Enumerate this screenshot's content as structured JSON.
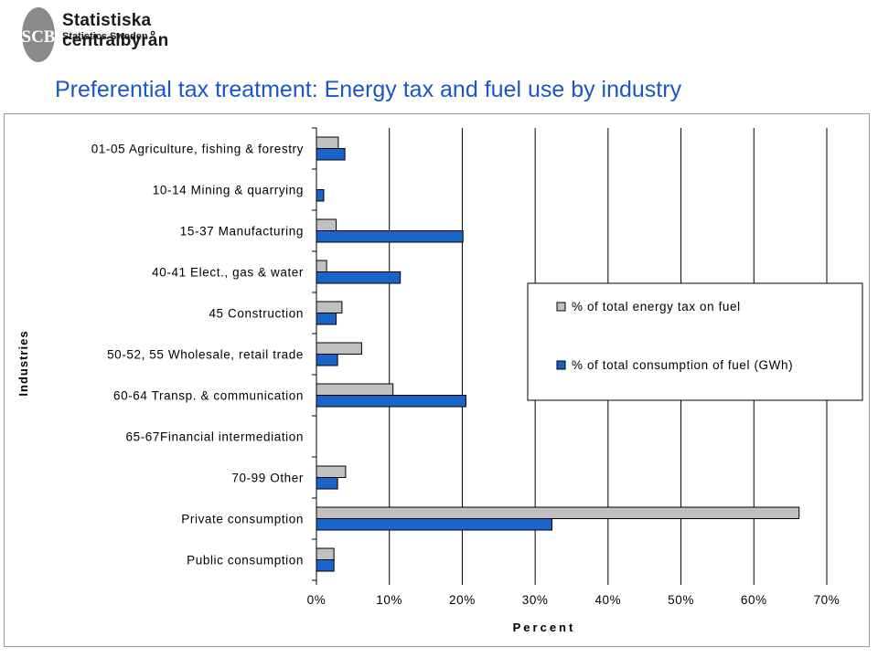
{
  "header": {
    "logo_name": "Statistiska centralbyrån",
    "logo_sub": "Statistics Sweden",
    "logo_mark": "SCB",
    "title": "Preferential tax treatment: Energy tax and fuel use by industry"
  },
  "chart_data": {
    "type": "bar",
    "orientation": "horizontal",
    "categories": [
      "01-05 Agriculture, fishing & forestry",
      "10-14 Mining & quarrying",
      "15-37 Manufacturing",
      "40-41 Elect., gas & water",
      "45 Construction",
      "50-52, 55 Wholesale, retail trade",
      "60-64 Transp. & communication",
      "65-67Financial intermediation",
      "70-99 Other",
      "Private consumption",
      "Public consumption"
    ],
    "series": [
      {
        "name": "% of total energy tax on fuel",
        "color": "#c0c0c0",
        "values": [
          3.0,
          0.0,
          2.7,
          1.4,
          3.5,
          6.2,
          10.5,
          0.0,
          4.0,
          66.2,
          2.4
        ]
      },
      {
        "name": "% of total consumption of fuel (GWh)",
        "color": "#1a63c9",
        "values": [
          3.9,
          1.0,
          20.1,
          11.5,
          2.7,
          2.9,
          20.5,
          0.0,
          2.9,
          32.3,
          2.4
        ]
      }
    ],
    "xlabel": "Percent",
    "ylabel": "Industries",
    "xlim": [
      0,
      70
    ],
    "xticks": [
      "0%",
      "10%",
      "20%",
      "30%",
      "40%",
      "50%",
      "60%",
      "70%"
    ],
    "grid": "vertical",
    "legend": "right"
  }
}
